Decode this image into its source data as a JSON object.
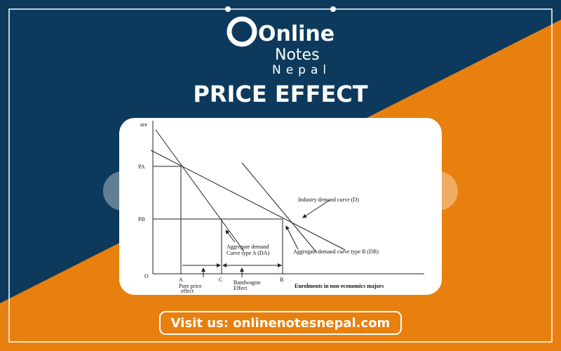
{
  "brand": {
    "line1": "Online",
    "line2": "Notes",
    "line3": "Nepal"
  },
  "title": "PRICE EFFECT",
  "diagram": {
    "y_axis_label": "ure",
    "origin": "O",
    "price_a": "PA",
    "price_b": "PB",
    "point_a": "A",
    "point_c": "C",
    "point_b": "B",
    "industry_curve": "Industry demand curve (D)",
    "curve_a_line1": "Aggregate demand",
    "curve_a_line2": "Curve type A (DA)",
    "curve_b": "Aggregate demand curve type B (DB)",
    "pure_price_line1": "Pure price",
    "pure_price_line2": "effect",
    "bandwagon_line1": "Bandwagon",
    "bandwagon_line2": "Effect",
    "x_axis_label": "Enrolments in non-economics majors"
  },
  "footer": "Visit us: onlinenotesnepal.com"
}
